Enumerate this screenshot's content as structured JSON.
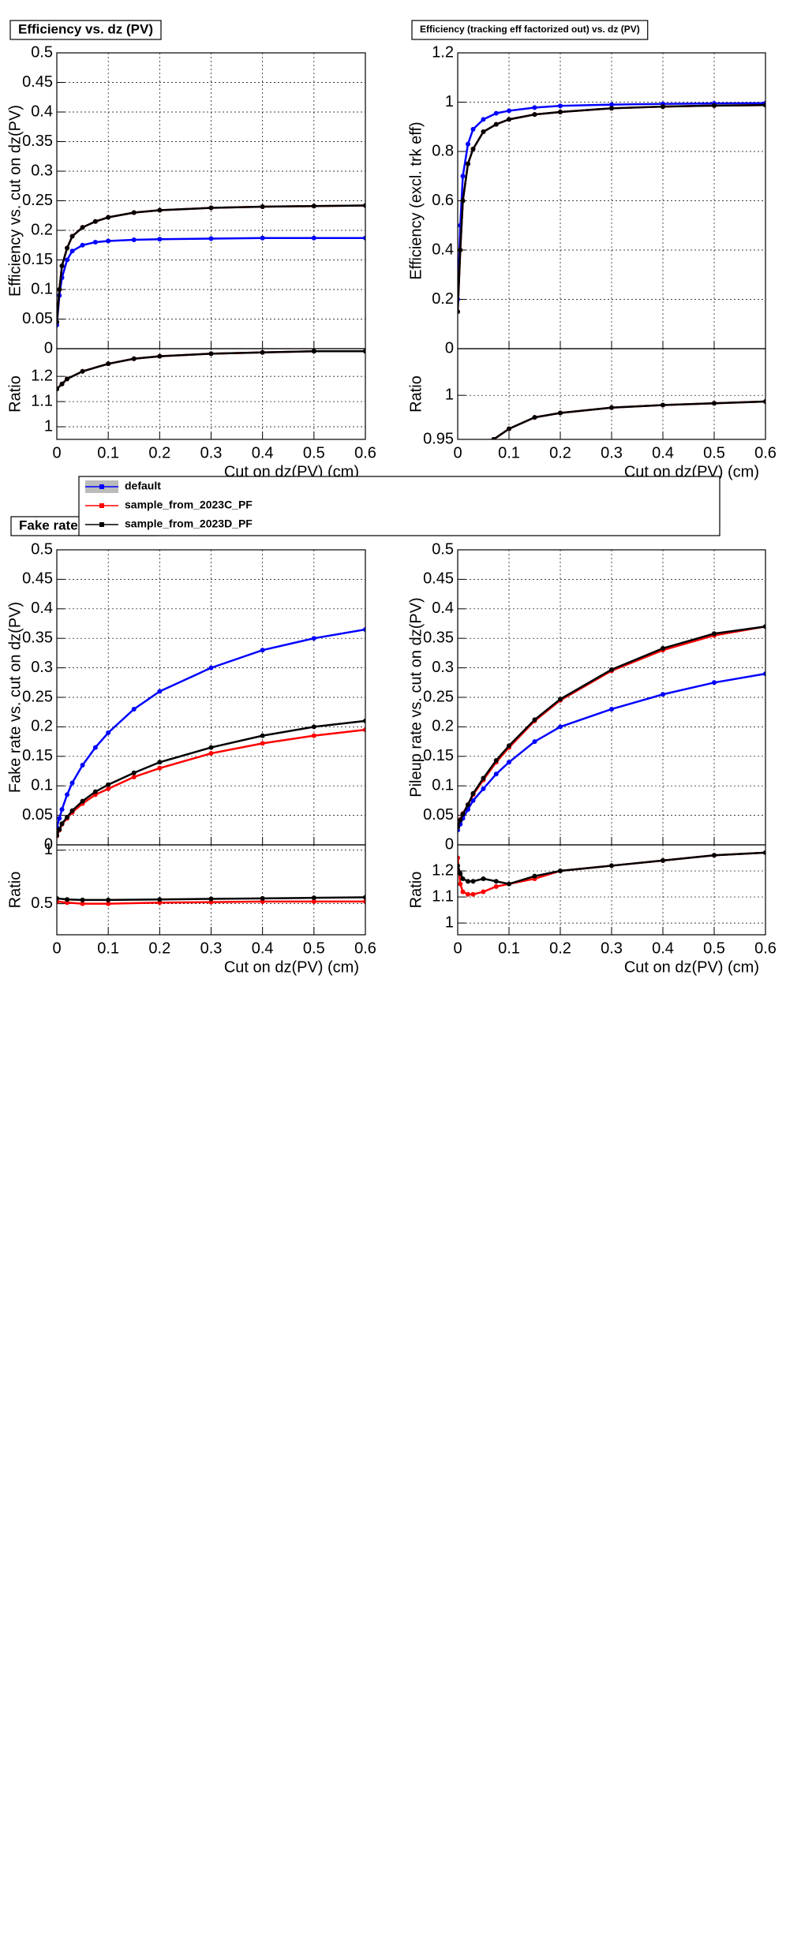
{
  "chart_data": [
    {
      "type": "line",
      "title": "Efficiency vs. dz (PV)",
      "ylabel": "Efficiency vs. cut on dz(PV)",
      "x": [
        0,
        0.005,
        0.01,
        0.02,
        0.03,
        0.05,
        0.075,
        0.1,
        0.15,
        0.2,
        0.3,
        0.4,
        0.5,
        0.6
      ],
      "series": [
        {
          "name": "default",
          "color": "#0000ff",
          "values": [
            0.04,
            0.09,
            0.12,
            0.15,
            0.165,
            0.175,
            0.18,
            0.182,
            0.184,
            0.185,
            0.186,
            0.187,
            0.187,
            0.187
          ]
        },
        {
          "name": "sample_from_2023C_PF",
          "color": "#ff0000",
          "values": [
            0.045,
            0.1,
            0.14,
            0.17,
            0.19,
            0.205,
            0.215,
            0.222,
            0.23,
            0.234,
            0.238,
            0.24,
            0.241,
            0.242
          ]
        },
        {
          "name": "sample_from_2023D_PF",
          "color": "#000000",
          "values": [
            0.045,
            0.1,
            0.14,
            0.17,
            0.19,
            0.205,
            0.215,
            0.222,
            0.23,
            0.234,
            0.238,
            0.24,
            0.241,
            0.242
          ]
        }
      ],
      "xlim": [
        0,
        0.6
      ],
      "xticks": [
        0,
        0.1,
        0.2,
        0.3,
        0.4,
        0.5,
        0.6
      ],
      "ylim": [
        0,
        0.5
      ],
      "yticks": [
        0,
        0.05,
        0.1,
        0.15,
        0.2,
        0.25,
        0.3,
        0.35,
        0.4,
        0.45,
        0.5
      ],
      "grid": true
    },
    {
      "type": "line",
      "ylabel": "Ratio",
      "xlabel": "Cut on dz(PV) (cm)",
      "x": [
        0,
        0.01,
        0.02,
        0.05,
        0.1,
        0.15,
        0.2,
        0.3,
        0.4,
        0.5,
        0.6
      ],
      "series": [
        {
          "color": "#ff0000",
          "values": [
            1.15,
            1.17,
            1.19,
            1.22,
            1.25,
            1.27,
            1.28,
            1.29,
            1.295,
            1.3,
            1.3
          ]
        },
        {
          "color": "#000000",
          "values": [
            1.15,
            1.17,
            1.19,
            1.22,
            1.25,
            1.27,
            1.28,
            1.29,
            1.295,
            1.3,
            1.3
          ]
        }
      ],
      "xlim": [
        0,
        0.6
      ],
      "xticks": [
        0,
        0.1,
        0.2,
        0.3,
        0.4,
        0.5,
        0.6
      ],
      "ylim": [
        0.95,
        1.31
      ],
      "yticks": [
        1,
        1.1,
        1.2
      ],
      "grid": true
    },
    {
      "type": "line",
      "title": "Efficiency (tracking eff factorized out) vs. dz (PV)",
      "ylabel": "Efficiency (excl. trk eff)",
      "x": [
        0,
        0.005,
        0.01,
        0.02,
        0.03,
        0.05,
        0.075,
        0.1,
        0.15,
        0.2,
        0.3,
        0.4,
        0.5,
        0.6
      ],
      "series": [
        {
          "name": "default",
          "color": "#0000ff",
          "values": [
            0.2,
            0.5,
            0.7,
            0.83,
            0.89,
            0.93,
            0.955,
            0.965,
            0.978,
            0.985,
            0.99,
            0.993,
            0.995,
            0.996
          ]
        },
        {
          "name": "sample_from_2023C_PF",
          "color": "#ff0000",
          "values": [
            0.15,
            0.4,
            0.6,
            0.75,
            0.81,
            0.88,
            0.91,
            0.93,
            0.95,
            0.96,
            0.975,
            0.982,
            0.986,
            0.988
          ]
        },
        {
          "name": "sample_from_2023D_PF",
          "color": "#000000",
          "values": [
            0.15,
            0.4,
            0.6,
            0.75,
            0.81,
            0.88,
            0.91,
            0.93,
            0.95,
            0.96,
            0.975,
            0.982,
            0.986,
            0.988
          ]
        }
      ],
      "xlim": [
        0,
        0.6
      ],
      "xticks": [
        0,
        0.1,
        0.2,
        0.3,
        0.4,
        0.5,
        0.6
      ],
      "ylim": [
        0,
        1.2
      ],
      "yticks": [
        0,
        0.2,
        0.4,
        0.6,
        0.8,
        1,
        1.2
      ],
      "grid": true
    },
    {
      "type": "line",
      "ylabel": "Ratio",
      "xlabel": "Cut on dz(PV) (cm)",
      "x": [
        0.07,
        0.1,
        0.15,
        0.2,
        0.3,
        0.4,
        0.5,
        0.6
      ],
      "series": [
        {
          "color": "#ff0000",
          "values": [
            0.95,
            0.962,
            0.975,
            0.98,
            0.986,
            0.989,
            0.991,
            0.993
          ]
        },
        {
          "color": "#000000",
          "values": [
            0.95,
            0.962,
            0.975,
            0.98,
            0.986,
            0.989,
            0.991,
            0.993
          ]
        }
      ],
      "xlim": [
        0,
        0.6
      ],
      "xticks": [
        0,
        0.1,
        0.2,
        0.3,
        0.4,
        0.5,
        0.6
      ],
      "ylim": [
        0.95,
        1.053
      ],
      "yticks": [
        0.95,
        1
      ],
      "grid": true
    },
    {
      "type": "line",
      "title": "Fake rate vs. dz (PV)",
      "ylabel": "Fake rate vs. cut on dz(PV)",
      "x": [
        0,
        0.005,
        0.01,
        0.02,
        0.03,
        0.05,
        0.075,
        0.1,
        0.15,
        0.2,
        0.3,
        0.4,
        0.5,
        0.6
      ],
      "series": [
        {
          "name": "default",
          "color": "#0000ff",
          "values": [
            0.03,
            0.045,
            0.06,
            0.085,
            0.105,
            0.135,
            0.165,
            0.19,
            0.23,
            0.26,
            0.3,
            0.33,
            0.35,
            0.365
          ]
        },
        {
          "name": "sample_from_2023C_PF",
          "color": "#ff0000",
          "values": [
            0.015,
            0.025,
            0.035,
            0.045,
            0.055,
            0.07,
            0.085,
            0.095,
            0.115,
            0.13,
            0.155,
            0.172,
            0.185,
            0.195
          ]
        },
        {
          "name": "sample_from_2023D_PF",
          "color": "#000000",
          "values": [
            0.016,
            0.026,
            0.036,
            0.047,
            0.058,
            0.074,
            0.09,
            0.102,
            0.122,
            0.14,
            0.165,
            0.185,
            0.2,
            0.21
          ]
        }
      ],
      "xlim": [
        0,
        0.6
      ],
      "xticks": [
        0,
        0.1,
        0.2,
        0.3,
        0.4,
        0.5,
        0.6
      ],
      "ylim": [
        0,
        0.5
      ],
      "yticks": [
        0,
        0.05,
        0.1,
        0.15,
        0.2,
        0.25,
        0.3,
        0.35,
        0.4,
        0.45,
        0.5
      ],
      "grid": true
    },
    {
      "type": "line",
      "ylabel": "Ratio",
      "xlabel": "Cut on dz(PV) (cm)",
      "x": [
        0,
        0.02,
        0.05,
        0.1,
        0.2,
        0.3,
        0.4,
        0.5,
        0.6
      ],
      "series": [
        {
          "color": "#ff0000",
          "values": [
            0.52,
            0.51,
            0.5,
            0.5,
            0.51,
            0.515,
            0.52,
            0.52,
            0.52
          ]
        },
        {
          "color": "#000000",
          "values": [
            0.55,
            0.54,
            0.535,
            0.535,
            0.54,
            0.545,
            0.55,
            0.555,
            0.56
          ]
        }
      ],
      "xlim": [
        0,
        0.6
      ],
      "xticks": [
        0,
        0.1,
        0.2,
        0.3,
        0.4,
        0.5,
        0.6
      ],
      "ylim": [
        0.21,
        1.05
      ],
      "yticks": [
        0.5,
        1
      ],
      "grid": true
    },
    {
      "type": "line",
      "ylabel": "Pileup rate vs. cut on dz(PV)",
      "x": [
        0,
        0.005,
        0.01,
        0.02,
        0.03,
        0.05,
        0.075,
        0.1,
        0.15,
        0.2,
        0.3,
        0.4,
        0.5,
        0.6
      ],
      "series": [
        {
          "name": "default",
          "color": "#0000ff",
          "values": [
            0.025,
            0.035,
            0.045,
            0.06,
            0.075,
            0.095,
            0.12,
            0.14,
            0.175,
            0.2,
            0.23,
            0.255,
            0.275,
            0.29
          ]
        },
        {
          "name": "sample_from_2023C_PF",
          "color": "#ff0000",
          "values": [
            0.03,
            0.043,
            0.053,
            0.068,
            0.085,
            0.11,
            0.14,
            0.165,
            0.21,
            0.245,
            0.295,
            0.33,
            0.355,
            0.37
          ]
        },
        {
          "name": "sample_from_2023D_PF",
          "color": "#000000",
          "values": [
            0.03,
            0.042,
            0.052,
            0.068,
            0.087,
            0.113,
            0.143,
            0.168,
            0.212,
            0.247,
            0.297,
            0.333,
            0.358,
            0.37
          ]
        }
      ],
      "xlim": [
        0,
        0.6
      ],
      "xticks": [
        0,
        0.1,
        0.2,
        0.3,
        0.4,
        0.5,
        0.6
      ],
      "ylim": [
        0,
        0.5
      ],
      "yticks": [
        0,
        0.05,
        0.1,
        0.15,
        0.2,
        0.25,
        0.3,
        0.35,
        0.4,
        0.45,
        0.5
      ],
      "grid": true
    },
    {
      "type": "line",
      "ylabel": "Ratio",
      "xlabel": "Cut on dz(PV) (cm)",
      "x": [
        0,
        0.005,
        0.01,
        0.02,
        0.03,
        0.05,
        0.075,
        0.1,
        0.15,
        0.2,
        0.3,
        0.4,
        0.5,
        0.6
      ],
      "series": [
        {
          "color": "#ff0000",
          "values": [
            1.25,
            1.15,
            1.12,
            1.11,
            1.11,
            1.12,
            1.14,
            1.15,
            1.17,
            1.2,
            1.22,
            1.24,
            1.26,
            1.27
          ]
        },
        {
          "color": "#000000",
          "values": [
            1.22,
            1.19,
            1.17,
            1.16,
            1.16,
            1.17,
            1.16,
            1.15,
            1.18,
            1.2,
            1.22,
            1.24,
            1.26,
            1.27
          ]
        }
      ],
      "xlim": [
        0,
        0.6
      ],
      "xticks": [
        0,
        0.1,
        0.2,
        0.3,
        0.4,
        0.5,
        0.6
      ],
      "ylim": [
        0.955,
        1.3
      ],
      "yticks": [
        1,
        1.1,
        1.2
      ],
      "grid": true
    }
  ]
}
